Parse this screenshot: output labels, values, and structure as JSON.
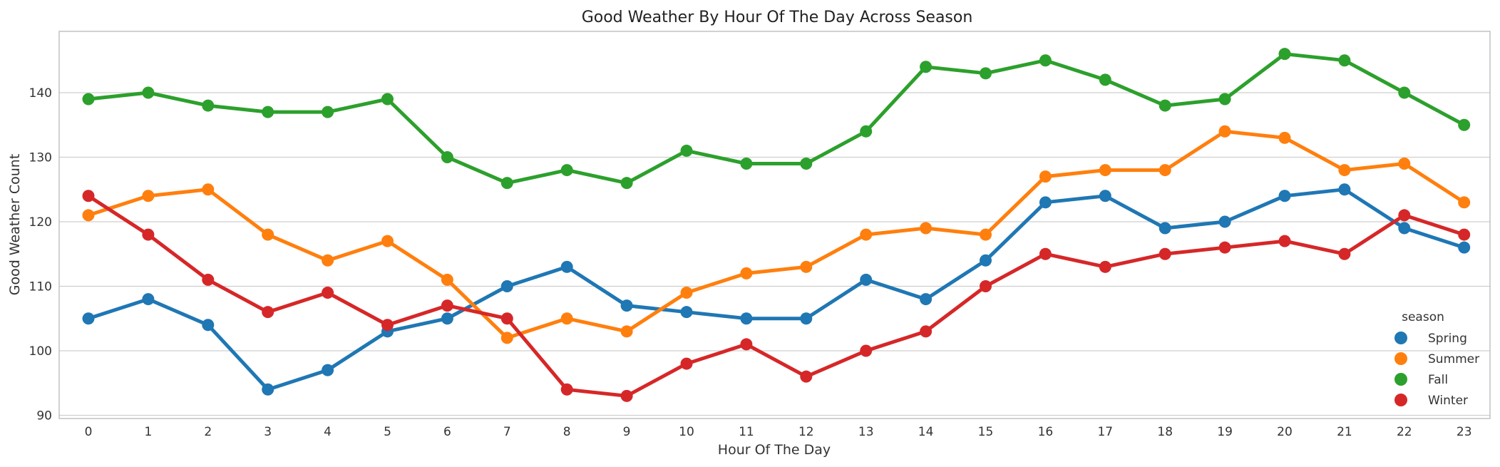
{
  "chart_data": {
    "type": "line",
    "title": "Good Weather By Hour Of The Day Across Season",
    "xlabel": "Hour Of The Day",
    "ylabel": "Good Weather Count",
    "categories": [
      "0",
      "1",
      "2",
      "3",
      "4",
      "5",
      "6",
      "7",
      "8",
      "9",
      "10",
      "11",
      "12",
      "13",
      "14",
      "15",
      "16",
      "17",
      "18",
      "19",
      "20",
      "21",
      "22",
      "23"
    ],
    "yticks": [
      90,
      100,
      110,
      120,
      130,
      140
    ],
    "ylim": [
      89.5,
      149.5
    ],
    "grid": true,
    "legend": {
      "title": "season",
      "placement": "lower-right"
    },
    "series": [
      {
        "name": "Spring",
        "color": "#1f77b4",
        "values": [
          105,
          108,
          104,
          94,
          97,
          103,
          105,
          110,
          113,
          107,
          106,
          105,
          105,
          111,
          108,
          114,
          123,
          124,
          119,
          120,
          124,
          125,
          119,
          116
        ]
      },
      {
        "name": "Summer",
        "color": "#ff7f0e",
        "values": [
          121,
          124,
          125,
          118,
          114,
          117,
          111,
          102,
          105,
          103,
          109,
          112,
          113,
          118,
          119,
          118,
          127,
          128,
          128,
          134,
          133,
          128,
          129,
          123
        ]
      },
      {
        "name": "Fall",
        "color": "#2ca02c",
        "values": [
          139,
          140,
          138,
          137,
          137,
          139,
          130,
          126,
          128,
          126,
          131,
          129,
          129,
          134,
          144,
          143,
          145,
          142,
          138,
          139,
          146,
          145,
          140,
          135
        ]
      },
      {
        "name": "Winter",
        "color": "#d62728",
        "values": [
          124,
          118,
          111,
          106,
          109,
          104,
          107,
          105,
          94,
          93,
          98,
          101,
          96,
          100,
          103,
          110,
          115,
          113,
          115,
          116,
          117,
          115,
          121,
          118
        ]
      }
    ]
  }
}
